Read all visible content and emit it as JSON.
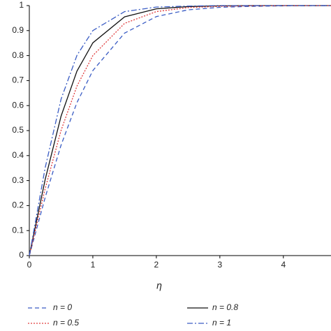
{
  "chart_data": {
    "type": "line",
    "xlabel": "η",
    "x": [
      0,
      0.25,
      0.5,
      0.75,
      1,
      1.5,
      2,
      2.5,
      3,
      3.5,
      4,
      4.75
    ],
    "series": [
      {
        "name": "n = 0",
        "color": "#3a5cc4",
        "dash": "dashed",
        "values": [
          0,
          0.233,
          0.442,
          0.612,
          0.74,
          0.89,
          0.956,
          0.983,
          0.993,
          0.997,
          0.999,
          1
        ]
      },
      {
        "name": "n = 0.8",
        "color": "#111111",
        "dash": "solid",
        "values": [
          0,
          0.305,
          0.558,
          0.738,
          0.851,
          0.955,
          0.987,
          0.996,
          0.999,
          1,
          1,
          1
        ]
      },
      {
        "name": "n = 0.5",
        "color": "#e03c3c",
        "dash": "dotted",
        "values": [
          0,
          0.268,
          0.501,
          0.678,
          0.8,
          0.929,
          0.976,
          0.992,
          0.997,
          0.999,
          1,
          1
        ]
      },
      {
        "name": "n = 1",
        "color": "#3a5cc4",
        "dash": "dashdot",
        "values": [
          0,
          0.352,
          0.626,
          0.801,
          0.9,
          0.976,
          0.994,
          0.998,
          1,
          1,
          1,
          1
        ]
      }
    ],
    "xlim": [
      0,
      4.75
    ],
    "ylim": [
      0,
      1
    ],
    "xticks": [
      0,
      1,
      2,
      3,
      4
    ],
    "yticks": [
      0,
      0.1,
      0.2,
      0.3,
      0.4,
      0.5,
      0.6,
      0.7,
      0.8,
      0.9,
      1
    ],
    "grid": false,
    "legend": "bottom"
  }
}
